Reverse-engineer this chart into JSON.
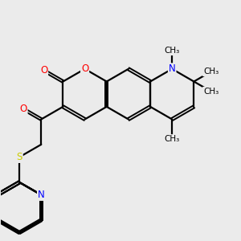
{
  "bg_color": "#ebebeb",
  "bond_color": "#000000",
  "bond_width": 1.6,
  "atom_colors": {
    "O": "#ff0000",
    "N": "#0000ff",
    "S": "#cccc00",
    "C": "#000000"
  },
  "font_size_atom": 8.5,
  "font_size_methyl": 7.5,
  "fig_width": 3.0,
  "fig_height": 3.0,
  "xlim": [
    0,
    10
  ],
  "ylim": [
    0,
    10
  ]
}
